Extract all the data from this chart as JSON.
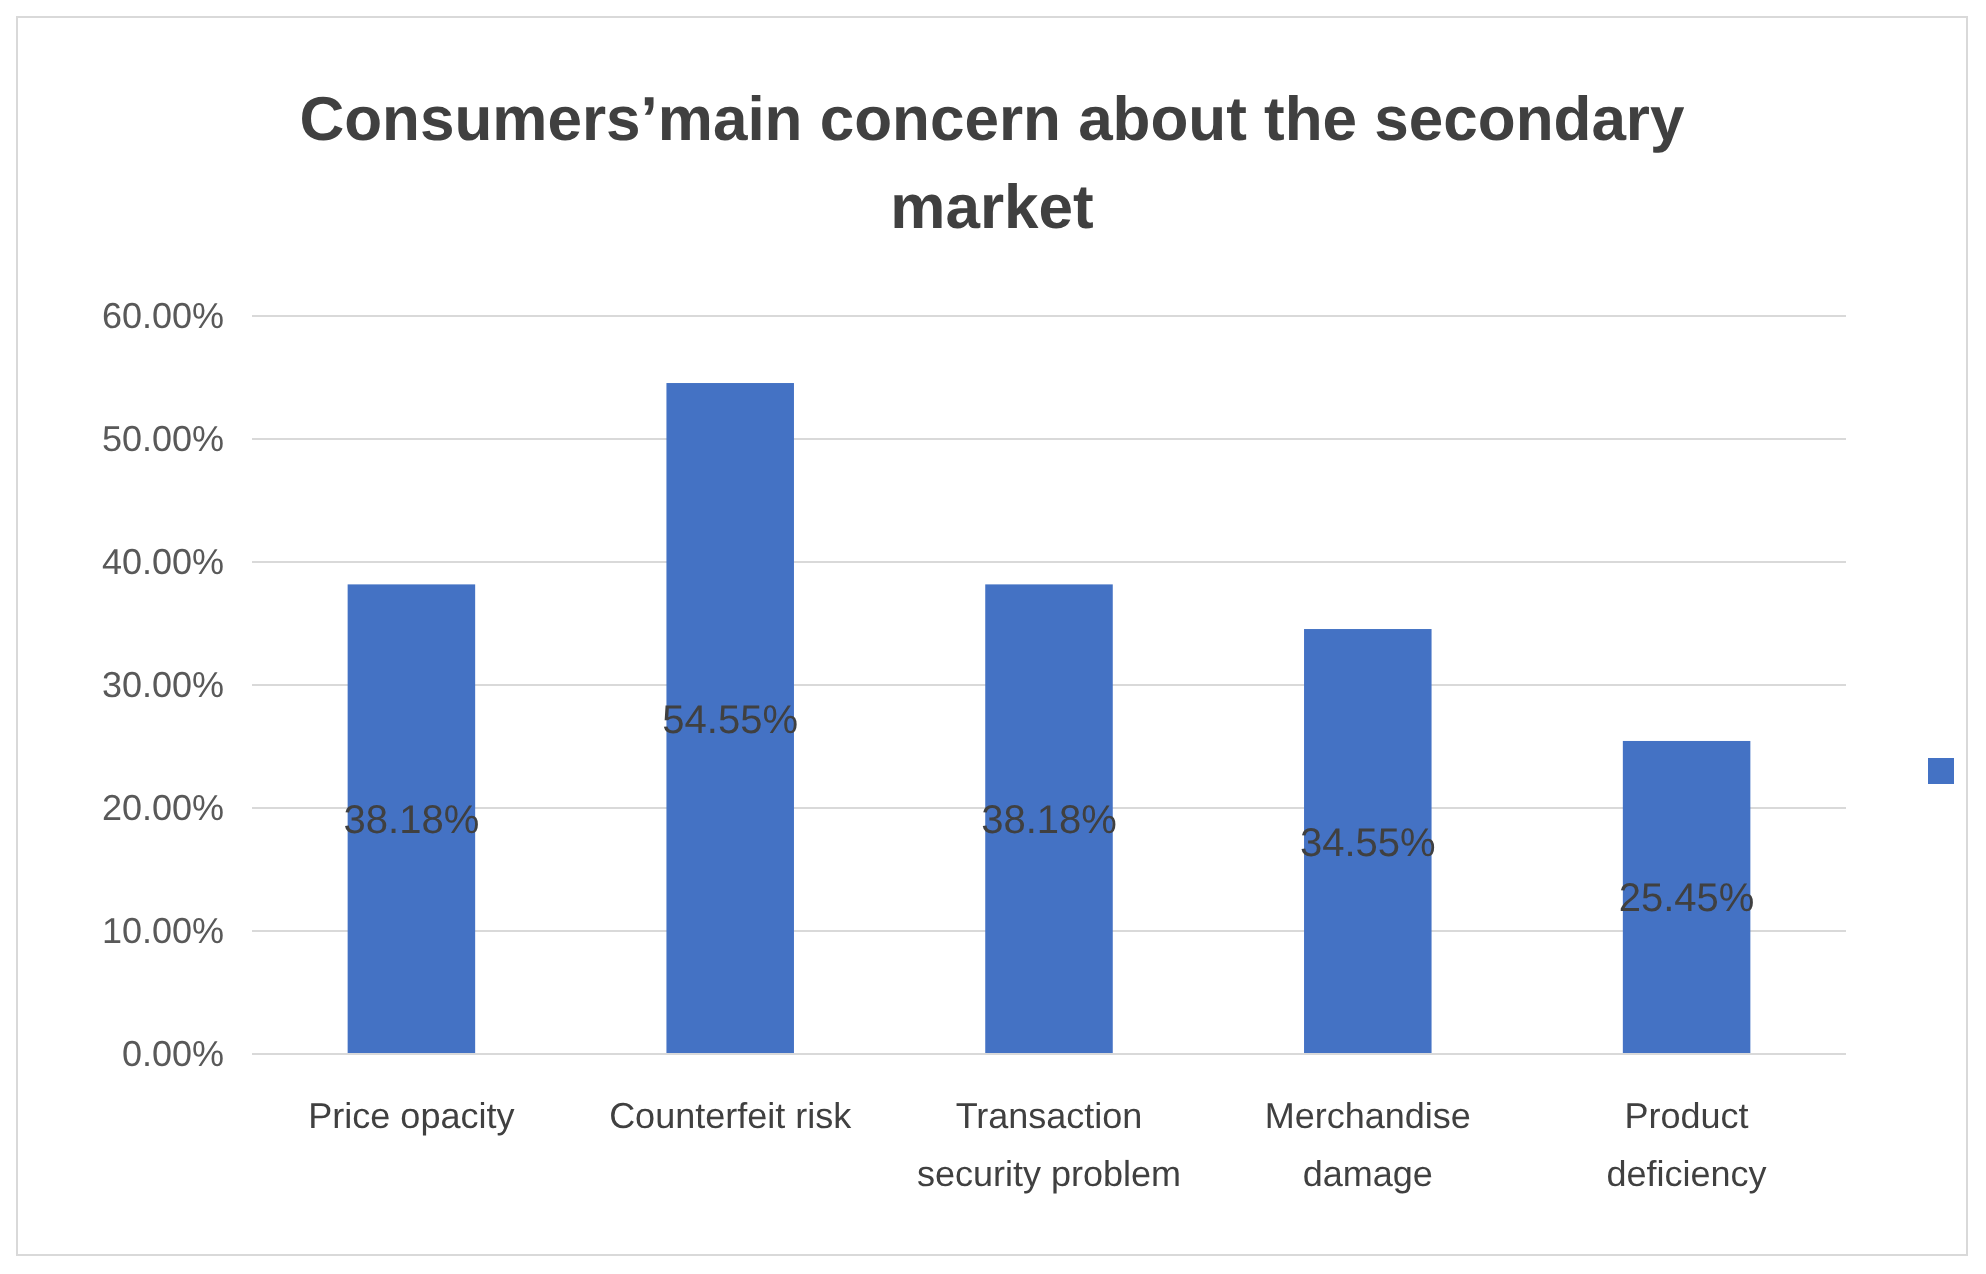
{
  "chart_data": {
    "type": "bar",
    "title": "Consumers’main concern about the secondary market",
    "categories": [
      "Price opacity",
      "Counterfeit risk",
      "Transaction security problem",
      "Merchandise damage",
      "Product deficiency"
    ],
    "series": [
      {
        "color": "#4472c4",
        "values": [
          38.18,
          54.55,
          38.18,
          34.55,
          25.45
        ],
        "value_labels": [
          "38.18%",
          "54.55%",
          "38.18%",
          "34.55%",
          "25.45%"
        ]
      }
    ],
    "ylim": [
      0,
      60
    ],
    "yticks": [
      {
        "value": 0,
        "label": "0.00%"
      },
      {
        "value": 10,
        "label": "10.00%"
      },
      {
        "value": 20,
        "label": "20.00%"
      },
      {
        "value": 30,
        "label": "30.00%"
      },
      {
        "value": 40,
        "label": "40.00%"
      },
      {
        "value": 50,
        "label": "50.00%"
      },
      {
        "value": 60,
        "label": "60.00%"
      }
    ],
    "grid": "y"
  }
}
